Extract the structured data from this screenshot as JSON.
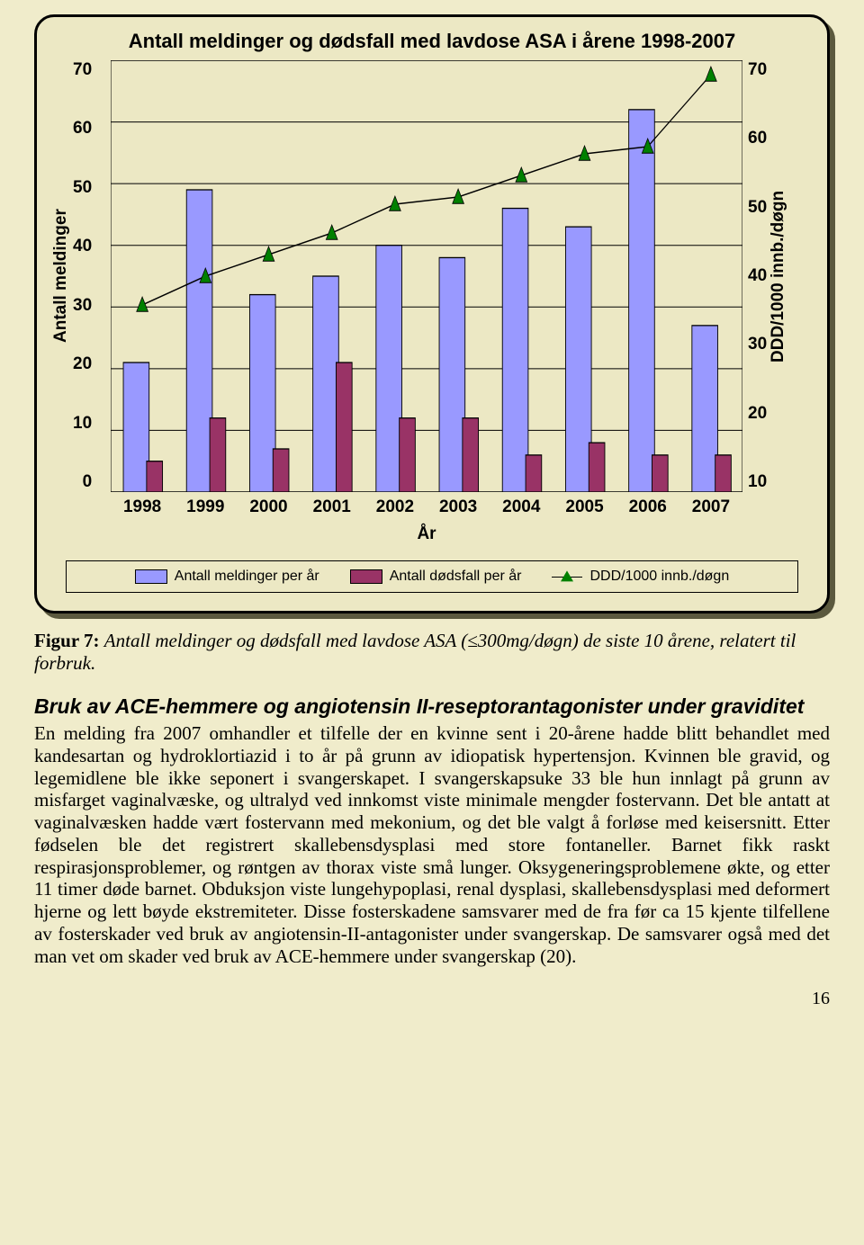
{
  "chart": {
    "type": "bar+line",
    "title": "Antall meldinger og dødsfall med lavdose ASA i årene 1998-2007",
    "background_color": "#ece8c4",
    "border_color": "#000000",
    "border_radius": 22,
    "years": [
      "1998",
      "1999",
      "2000",
      "2001",
      "2002",
      "2003",
      "2004",
      "2005",
      "2006",
      "2007"
    ],
    "series_meldinger": {
      "label": "Antall meldinger per år",
      "color": "#9999ff",
      "values": [
        21,
        49,
        32,
        35,
        40,
        38,
        46,
        43,
        62,
        27
      ]
    },
    "series_dodsfall": {
      "label": "Antall dødsfall per år",
      "color": "#993366",
      "values": [
        5,
        12,
        7,
        21,
        12,
        12,
        6,
        8,
        6,
        6
      ]
    },
    "series_ddd": {
      "label": "DDD/1000 innb./døgn",
      "color": "#008000",
      "values": [
        36,
        40,
        43,
        46,
        50,
        51,
        54,
        57,
        58,
        68
      ]
    },
    "left_axis": {
      "label": "Antall meldinger",
      "min": 0,
      "max": 70,
      "step": 10,
      "font_size": 19
    },
    "right_axis": {
      "label": "DDD/1000 innb./døgn",
      "min": 10,
      "max": 70,
      "step": 10,
      "font_size": 19
    },
    "x_axis": {
      "label": "År",
      "font_size": 19
    },
    "bar_group_width": 0.6,
    "bar_ratio": 0.68,
    "grid_color": "#000000",
    "title_fontsize": 22,
    "legend_fontsize": 16
  },
  "caption_prefix": "Figur 7: ",
  "caption_text": "Antall meldinger og dødsfall med lavdose ASA (≤300mg/døgn) de siste 10 årene, relatert til forbruk.",
  "section_heading": "Bruk av ACE-hemmere og angiotensin II-reseptorantagonister under graviditet",
  "body_text": "En melding fra 2007 omhandler et tilfelle der en kvinne sent i 20-årene hadde blitt behandlet med kandesartan og hydroklortiazid i to år på grunn av idiopatisk hypertensjon. Kvinnen ble gravid, og legemidlene ble ikke seponert i svangerskapet. I svangerskapsuke 33 ble hun innlagt på grunn av misfarget vaginalvæske, og ultralyd ved innkomst viste minimale mengder fostervann. Det ble antatt at vaginalvæsken hadde vært fostervann med mekonium, og det ble valgt å forløse med keisersnitt. Etter fødselen ble det registrert skallebensdysplasi med store fontaneller. Barnet fikk raskt respirasjonsproblemer, og røntgen av thorax viste små lunger. Oksygeneringsproblemene økte, og etter 11 timer døde barnet. Obduksjon viste lungehypoplasi, renal dysplasi, skallebensdysplasi med deformert hjerne og lett bøyde ekstremiteter. Disse fosterskadene samsvarer med de fra før ca 15 kjente tilfellene av fosterskader ved bruk av angiotensin-II-antagonister under svangerskap. De samsvarer også med det man vet om skader ved bruk av ACE-hemmere under svangerskap (20).",
  "page_number": "16"
}
